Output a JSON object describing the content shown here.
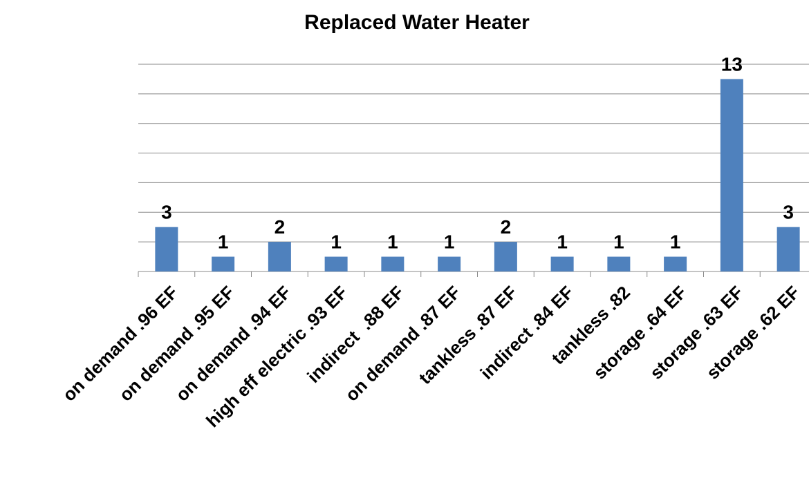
{
  "chart_data": {
    "type": "bar",
    "title": "Replaced Water Heater",
    "categories": [
      "on demand .96 EF",
      "on demand .95 EF",
      "on demand .94 EF",
      "high eff electric .93 EF",
      "indirect  .88 EF",
      "on demand .87 EF",
      "tankless .87 EF",
      "indirect .84 EF",
      "tankless .82",
      "storage .64 EF",
      "storage .63 EF",
      "storage .62 EF"
    ],
    "values": [
      3,
      1,
      2,
      1,
      1,
      1,
      2,
      1,
      1,
      1,
      13,
      3
    ],
    "color": "#4f81bd",
    "ylim": [
      0,
      14
    ],
    "yticks": [
      0,
      2,
      4,
      6,
      8,
      10,
      12,
      14
    ],
    "grid": true
  }
}
